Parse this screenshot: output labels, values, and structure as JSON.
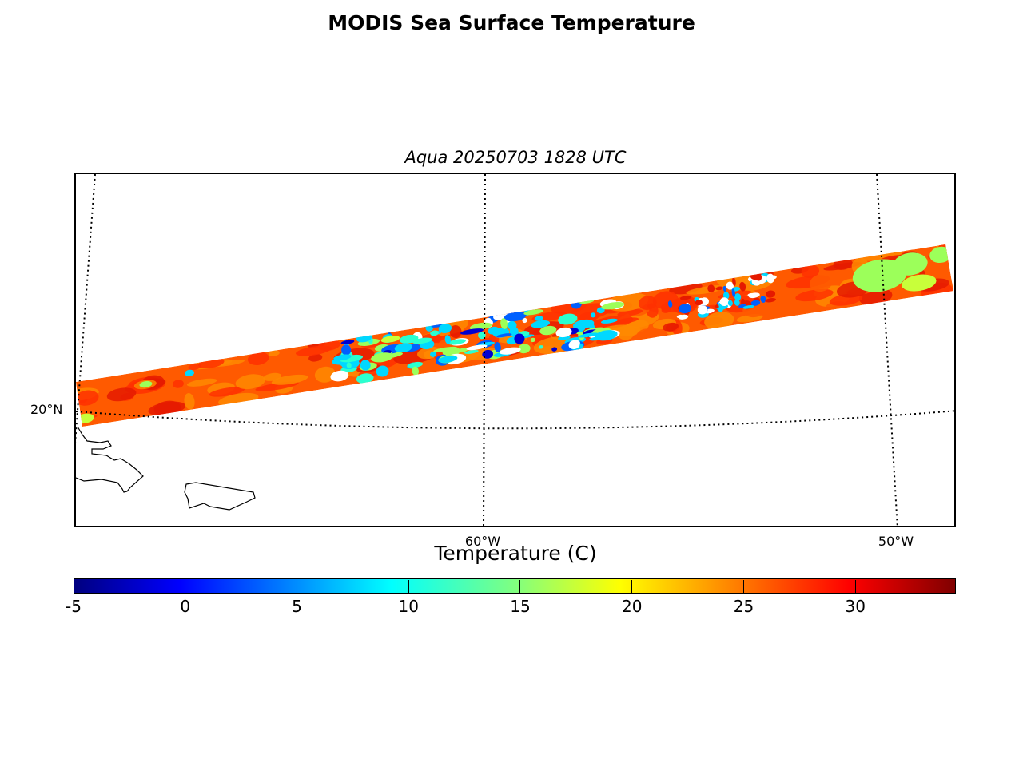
{
  "title": "MODIS Sea Surface Temperature",
  "subtitle": "Aqua 20250703 1828 UTC",
  "map": {
    "lat_labels": [
      "20°N"
    ],
    "lon_labels": [
      "60°W",
      "50°W"
    ],
    "swath_colors": {
      "base": "#ff5a00",
      "warm": "#ff3000",
      "hot": "#e51a00",
      "mid": "#ff8a00",
      "cool_yellow": "#c8ff3a",
      "cool_green": "#9cff5a",
      "aqua": "#2affd0",
      "cyan": "#00d8ff",
      "blue": "#0060ff",
      "navy": "#0000d0"
    }
  },
  "colorbar": {
    "label": "Temperature (C)",
    "ticks": [
      "-5",
      "0",
      "5",
      "10",
      "15",
      "20",
      "25",
      "30"
    ],
    "range": [
      -5,
      34.5
    ],
    "colormap": "jet"
  }
}
